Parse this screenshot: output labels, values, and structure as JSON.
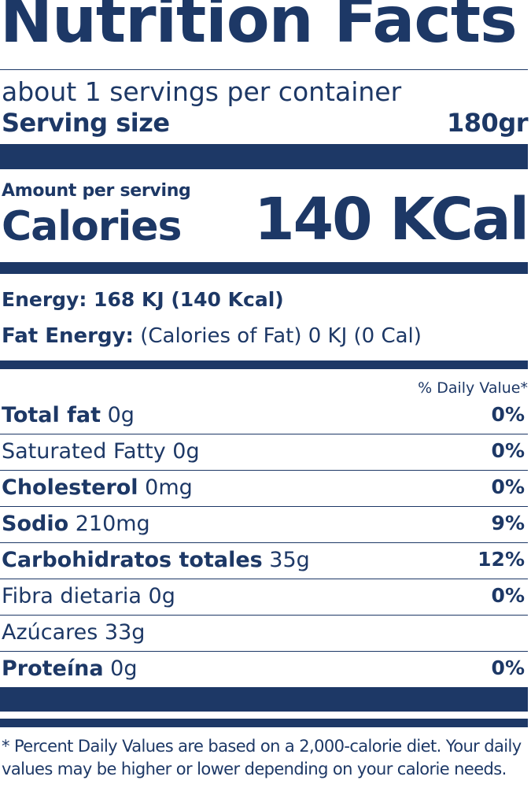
{
  "label": {
    "title": "Nutrition Facts",
    "servings_per_container": "about 1 servings per container",
    "serving_size_label": "Serving size",
    "serving_size_value": "180gr",
    "amount_per_serving": "Amount per serving",
    "calories_label": "Calories",
    "calories_value": "140 KCal",
    "energy": "Energy: 168 KJ (140 Kcal)",
    "fat_energy_label": "Fat Energy:",
    "fat_energy_value": " (Calories of Fat) 0 KJ (0 Cal)",
    "daily_value_header": "% Daily Value*"
  },
  "nutrients": [
    {
      "bold": "Total fat",
      "rest": " 0g",
      "pct": "0%"
    },
    {
      "bold": "",
      "rest": "Saturated Fatty 0g",
      "pct": "0%"
    },
    {
      "bold": "Cholesterol",
      "rest": " 0mg",
      "pct": "0%"
    },
    {
      "bold": "Sodio",
      "rest": " 210mg",
      "pct": "9%"
    },
    {
      "bold": "Carbohidratos totales",
      "rest": " 35g",
      "pct": "12%"
    },
    {
      "bold": "",
      "rest": "Fibra dietaria 0g",
      "pct": "0%"
    },
    {
      "bold": "",
      "rest": "Azúcares 33g",
      "pct": ""
    },
    {
      "bold": "Proteína",
      "rest": " 0g",
      "pct": "0%"
    }
  ],
  "footnote": "* Percent Daily Values are based on a 2,000-calorie diet. Your daily values may be higher or lower depending on your calorie needs.",
  "colors": {
    "ink": "#1d3866",
    "background": "#ffffff"
  }
}
